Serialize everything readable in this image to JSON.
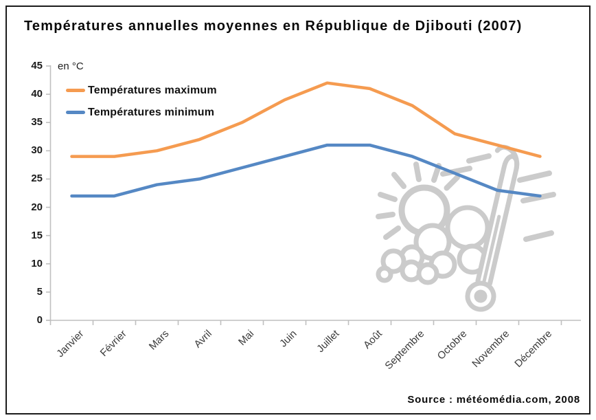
{
  "title": "Températures annuelles moyennes en République de Djibouti (2007)",
  "unit_label": "en °C",
  "source": "Source : météomédia.com, 2008",
  "legend": {
    "items": [
      {
        "label": "Températures maximum"
      },
      {
        "label": "Températures minimum"
      }
    ]
  },
  "colors": {
    "series_max": "#F59B50",
    "series_min": "#5588C4",
    "axis": "#BFBFBF",
    "watermark": "#CBCBCB",
    "frame": "#1B1B1B",
    "text": "#0A0A0A"
  },
  "watermark": {
    "icon": "sun-cloud-thermometer-icon",
    "color": "#CBCBCB"
  },
  "chart_data": {
    "type": "line",
    "title": "Températures annuelles moyennes en République de Djibouti (2007)",
    "unit": "°C",
    "categories": [
      "Janvier",
      "Février",
      "Mars",
      "Avril",
      "Mai",
      "Juin",
      "Juillet",
      "Août",
      "Septembre",
      "Octobre",
      "Novembre",
      "Décembre"
    ],
    "series": [
      {
        "name": "Températures maximum",
        "color": "#F59B50",
        "values": [
          29,
          29,
          30,
          32,
          35,
          39,
          42,
          41,
          38,
          33,
          31,
          29
        ]
      },
      {
        "name": "Températures minimum",
        "color": "#5588C4",
        "values": [
          22,
          22,
          24,
          25,
          27,
          29,
          31,
          31,
          29,
          26,
          23,
          22
        ]
      }
    ],
    "xlabel": "",
    "ylabel": "en °C",
    "ylim": [
      0,
      45
    ],
    "ytick_step": 5,
    "yticks": [
      0,
      5,
      10,
      15,
      20,
      25,
      30,
      35,
      40,
      45
    ],
    "grid": false,
    "legend_position": "top-left",
    "line_width": 4.5,
    "source": "Source : météomédia.com, 2008"
  }
}
